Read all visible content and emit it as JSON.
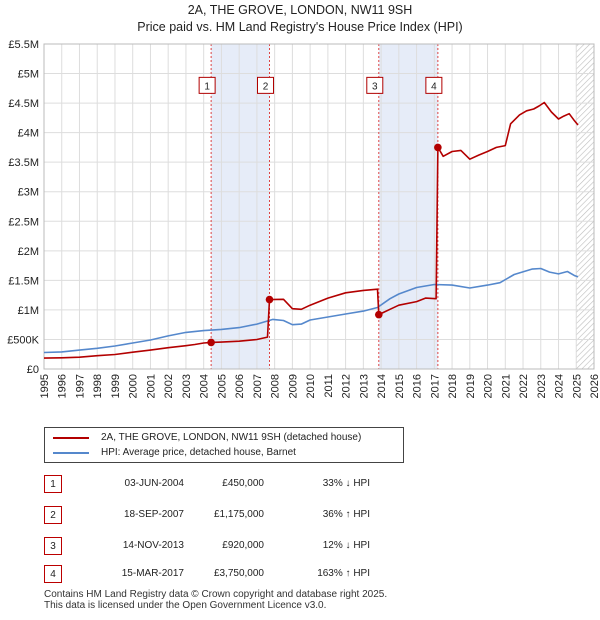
{
  "titles": {
    "line1": "2A, THE GROVE, LONDON, NW11 9SH",
    "line2": "Price paid vs. HM Land Registry's House Price Index (HPI)"
  },
  "chart_data": {
    "type": "line",
    "title": "Price paid vs. HM Land Registry's House Price Index (HPI)",
    "xlim": [
      1995,
      2026
    ],
    "ylim": [
      0,
      5500000
    ],
    "y_ticks": [
      {
        "value": 0,
        "label": "£0"
      },
      {
        "value": 500000,
        "label": "£500K"
      },
      {
        "value": 1000000,
        "label": "£1M"
      },
      {
        "value": 1500000,
        "label": "£1.5M"
      },
      {
        "value": 2000000,
        "label": "£2M"
      },
      {
        "value": 2500000,
        "label": "£2.5M"
      },
      {
        "value": 3000000,
        "label": "£3M"
      },
      {
        "value": 3500000,
        "label": "£3.5M"
      },
      {
        "value": 4000000,
        "label": "£4M"
      },
      {
        "value": 4500000,
        "label": "£4.5M"
      },
      {
        "value": 5000000,
        "label": "£5M"
      },
      {
        "value": 5500000,
        "label": "£5.5M"
      }
    ],
    "x_ticks": [
      "1995",
      "1996",
      "1997",
      "1998",
      "1999",
      "2000",
      "2001",
      "2002",
      "2003",
      "2004",
      "2005",
      "2006",
      "2007",
      "2008",
      "2009",
      "2010",
      "2011",
      "2012",
      "2013",
      "2014",
      "2015",
      "2016",
      "2017",
      "2018",
      "2019",
      "2020",
      "2021",
      "2022",
      "2023",
      "2024",
      "2025",
      "2026"
    ],
    "grid": true,
    "hatch_from": 2025.0,
    "shaded_periods": [
      [
        2004.42,
        2007.71
      ],
      [
        2013.87,
        2017.2
      ]
    ],
    "series": [
      {
        "name": "2A, THE GROVE, LONDON, NW11 9SH (detached house)",
        "color": "#b30000",
        "points": [
          [
            1995.0,
            185000
          ],
          [
            1996.0,
            190000
          ],
          [
            1997.0,
            200000
          ],
          [
            1998.0,
            225000
          ],
          [
            1999.0,
            245000
          ],
          [
            2000.0,
            285000
          ],
          [
            2001.0,
            320000
          ],
          [
            2002.0,
            360000
          ],
          [
            2003.0,
            395000
          ],
          [
            2003.5,
            415000
          ],
          [
            2004.0,
            440000
          ],
          [
            2004.42,
            450000
          ],
          [
            2005.0,
            455000
          ],
          [
            2006.0,
            470000
          ],
          [
            2007.0,
            500000
          ],
          [
            2007.6,
            540000
          ],
          [
            2007.71,
            1175000
          ],
          [
            2008.5,
            1180000
          ],
          [
            2009.0,
            1020000
          ],
          [
            2009.5,
            1010000
          ],
          [
            2010.0,
            1080000
          ],
          [
            2011.0,
            1200000
          ],
          [
            2012.0,
            1290000
          ],
          [
            2013.0,
            1330000
          ],
          [
            2013.8,
            1350000
          ],
          [
            2013.87,
            920000
          ],
          [
            2014.5,
            1010000
          ],
          [
            2015.0,
            1080000
          ],
          [
            2016.0,
            1140000
          ],
          [
            2016.5,
            1200000
          ],
          [
            2017.1,
            1190000
          ],
          [
            2017.2,
            3750000
          ],
          [
            2017.5,
            3600000
          ],
          [
            2018.0,
            3680000
          ],
          [
            2018.5,
            3700000
          ],
          [
            2019.0,
            3550000
          ],
          [
            2019.5,
            3620000
          ],
          [
            2020.0,
            3680000
          ],
          [
            2020.5,
            3750000
          ],
          [
            2021.0,
            3780000
          ],
          [
            2021.3,
            4150000
          ],
          [
            2021.8,
            4300000
          ],
          [
            2022.2,
            4370000
          ],
          [
            2022.6,
            4400000
          ],
          [
            2022.9,
            4450000
          ],
          [
            2023.2,
            4510000
          ],
          [
            2023.6,
            4350000
          ],
          [
            2024.0,
            4230000
          ],
          [
            2024.3,
            4280000
          ],
          [
            2024.6,
            4320000
          ],
          [
            2024.9,
            4200000
          ],
          [
            2025.1,
            4130000
          ]
        ]
      },
      {
        "name": "HPI: Average price, detached house, Barnet",
        "color": "#5588cc",
        "points": [
          [
            1995.0,
            280000
          ],
          [
            1996.0,
            290000
          ],
          [
            1997.0,
            320000
          ],
          [
            1998.0,
            350000
          ],
          [
            1999.0,
            390000
          ],
          [
            2000.0,
            440000
          ],
          [
            2001.0,
            490000
          ],
          [
            2002.0,
            560000
          ],
          [
            2003.0,
            620000
          ],
          [
            2004.0,
            650000
          ],
          [
            2005.0,
            670000
          ],
          [
            2006.0,
            700000
          ],
          [
            2007.0,
            760000
          ],
          [
            2007.9,
            840000
          ],
          [
            2008.5,
            820000
          ],
          [
            2009.0,
            750000
          ],
          [
            2009.5,
            760000
          ],
          [
            2010.0,
            830000
          ],
          [
            2011.0,
            880000
          ],
          [
            2012.0,
            930000
          ],
          [
            2013.0,
            980000
          ],
          [
            2013.8,
            1040000
          ],
          [
            2014.5,
            1190000
          ],
          [
            2015.0,
            1270000
          ],
          [
            2016.0,
            1380000
          ],
          [
            2017.0,
            1430000
          ],
          [
            2018.0,
            1420000
          ],
          [
            2019.0,
            1370000
          ],
          [
            2020.0,
            1420000
          ],
          [
            2020.7,
            1460000
          ],
          [
            2021.5,
            1600000
          ],
          [
            2022.5,
            1690000
          ],
          [
            2023.0,
            1700000
          ],
          [
            2023.5,
            1640000
          ],
          [
            2024.0,
            1610000
          ],
          [
            2024.5,
            1650000
          ],
          [
            2024.9,
            1580000
          ],
          [
            2025.1,
            1560000
          ]
        ]
      }
    ],
    "sales": [
      {
        "id": "1",
        "x": 2004.42,
        "price": 450000
      },
      {
        "id": "2",
        "x": 2007.71,
        "price": 1175000
      },
      {
        "id": "3",
        "x": 2013.87,
        "price": 920000
      },
      {
        "id": "4",
        "x": 2017.2,
        "price": 3750000
      }
    ],
    "marker_y": 4800000
  },
  "legend": {
    "items": [
      {
        "label": "2A, THE GROVE, LONDON, NW11 9SH (detached house)",
        "color": "#b30000"
      },
      {
        "label": "HPI: Average price, detached house, Barnet",
        "color": "#5588cc"
      }
    ]
  },
  "transactions": [
    {
      "num": "1",
      "date": "03-JUN-2004",
      "price": "£450,000",
      "hpi": "33% ↓ HPI"
    },
    {
      "num": "2",
      "date": "18-SEP-2007",
      "price": "£1,175,000",
      "hpi": "36% ↑ HPI"
    },
    {
      "num": "3",
      "date": "14-NOV-2013",
      "price": "£920,000",
      "hpi": "12% ↓ HPI"
    },
    {
      "num": "4",
      "date": "15-MAR-2017",
      "price": "£3,750,000",
      "hpi": "163% ↑ HPI"
    }
  ],
  "footer": {
    "line1": "Contains HM Land Registry data © Crown copyright and database right 2025.",
    "line2": "This data is licensed under the Open Government Licence v3.0."
  }
}
